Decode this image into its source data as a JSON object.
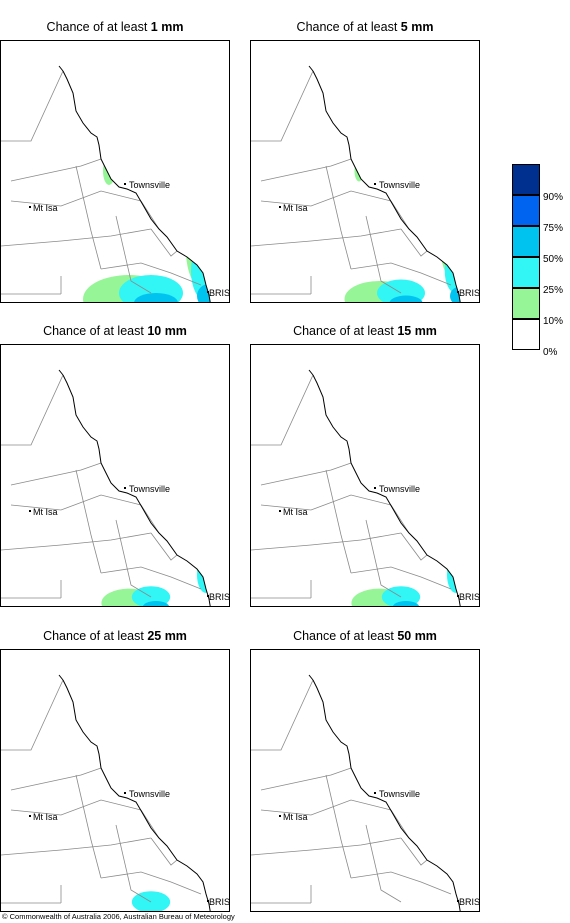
{
  "panels": [
    {
      "title_prefix": "Chance of at least ",
      "title_value": "1 mm",
      "coverage": 1.0
    },
    {
      "title_prefix": "Chance of at least ",
      "title_value": "5 mm",
      "coverage": 0.75
    },
    {
      "title_prefix": "Chance of at least ",
      "title_value": "10 mm",
      "coverage": 0.55
    },
    {
      "title_prefix": "Chance of at least ",
      "title_value": "15 mm",
      "coverage": 0.45
    },
    {
      "title_prefix": "Chance of at least ",
      "title_value": "25 mm",
      "coverage": 0.25
    },
    {
      "title_prefix": "Chance of at least ",
      "title_value": "50 mm",
      "coverage": 0.08
    }
  ],
  "places": {
    "townsville": "Townsville",
    "mt_isa": "Mt Isa",
    "brisbane": "BRIS"
  },
  "legend": {
    "labels": [
      "90%",
      "75%",
      "50%",
      "25%",
      "10%",
      "0%"
    ],
    "colors": [
      "#00308f",
      "#0064f0",
      "#00c3f0",
      "#32f5f5",
      "#96f596",
      "#ffffff"
    ]
  },
  "credit": "© Commonwealth of Australia 2006, Australian Bureau of Meteorology"
}
